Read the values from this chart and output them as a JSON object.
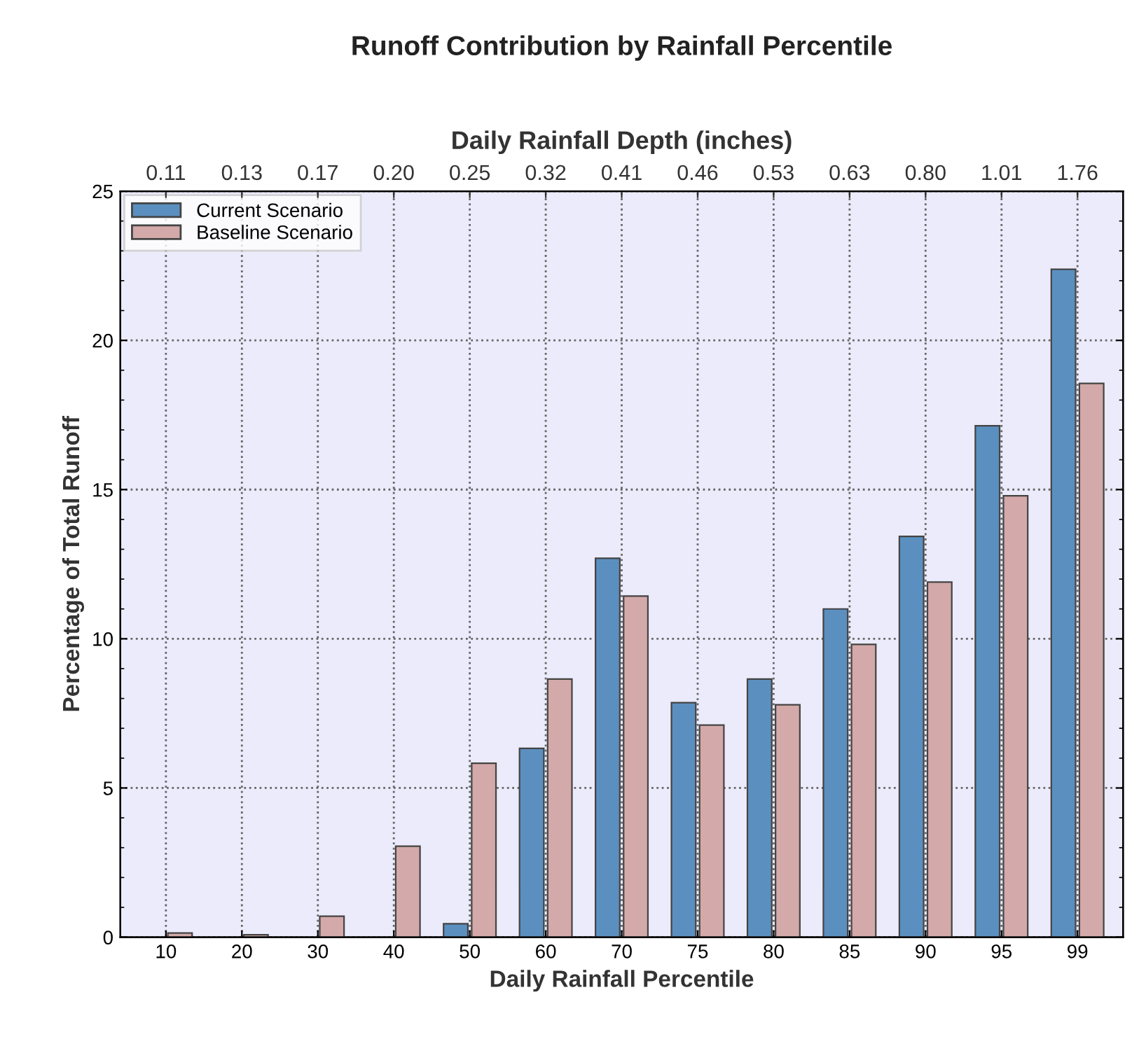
{
  "chart_data": {
    "type": "bar",
    "title": "Runoff Contribution by Rainfall Percentile",
    "xlabel": "Daily Rainfall Percentile",
    "ylabel": "Percentage of Total Runoff",
    "x2label": "Daily Rainfall Depth (inches)",
    "categories": [
      "10",
      "20",
      "30",
      "40",
      "50",
      "60",
      "70",
      "75",
      "80",
      "85",
      "90",
      "95",
      "99"
    ],
    "annotations": [
      "0.11",
      "0.13",
      "0.17",
      "0.20",
      "0.25",
      "0.32",
      "0.41",
      "0.46",
      "0.53",
      "0.63",
      "0.80",
      "1.01",
      "1.76"
    ],
    "series": [
      {
        "name": "Current Scenario",
        "color": "#5b8fc0",
        "values": [
          null,
          null,
          null,
          null,
          0.45,
          6.33,
          12.7,
          7.86,
          8.65,
          11.0,
          13.43,
          17.14,
          22.38
        ]
      },
      {
        "name": "Baseline Scenario",
        "color": "#d4a9a9",
        "values": [
          0.14,
          0.08,
          0.7,
          3.05,
          5.83,
          8.65,
          11.43,
          7.11,
          7.79,
          9.81,
          11.9,
          14.79,
          18.56
        ]
      }
    ],
    "ylim": [
      0,
      25
    ],
    "yticks": [
      0,
      5,
      10,
      15,
      20,
      25
    ],
    "grid": true,
    "legend": "top left"
  }
}
